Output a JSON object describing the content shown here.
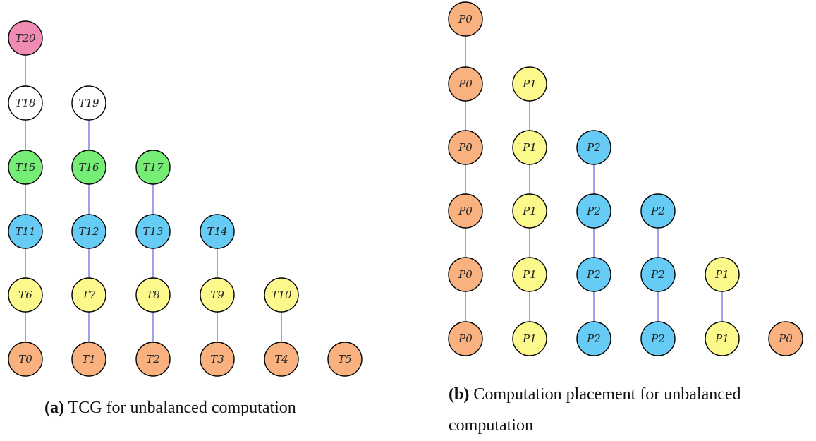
{
  "colors": {
    "pink": "#f08cb4",
    "white": "#ffffff",
    "green": "#76ee76",
    "blue": "#66ccf5",
    "yellow": "#fcf98c",
    "orange": "#f9b27f",
    "edge": "#8888e8",
    "stroke": "#000000"
  },
  "diagram_a": {
    "nodes": [
      {
        "id": "T20",
        "label": "T20",
        "color": "pink"
      },
      {
        "id": "T18",
        "label": "T18",
        "color": "white"
      },
      {
        "id": "T19",
        "label": "T19",
        "color": "white"
      },
      {
        "id": "T15",
        "label": "T15",
        "color": "green"
      },
      {
        "id": "T16",
        "label": "T16",
        "color": "green"
      },
      {
        "id": "T17",
        "label": "T17",
        "color": "green"
      },
      {
        "id": "T11",
        "label": "T11",
        "color": "blue"
      },
      {
        "id": "T12",
        "label": "T12",
        "color": "blue"
      },
      {
        "id": "T13",
        "label": "T13",
        "color": "blue"
      },
      {
        "id": "T14",
        "label": "T14",
        "color": "blue"
      },
      {
        "id": "T6",
        "label": "T6",
        "color": "yellow"
      },
      {
        "id": "T7",
        "label": "T7",
        "color": "yellow"
      },
      {
        "id": "T8",
        "label": "T8",
        "color": "yellow"
      },
      {
        "id": "T9",
        "label": "T9",
        "color": "yellow"
      },
      {
        "id": "T10",
        "label": "T10",
        "color": "yellow"
      },
      {
        "id": "T0",
        "label": "T0",
        "color": "orange"
      },
      {
        "id": "T1",
        "label": "T1",
        "color": "orange"
      },
      {
        "id": "T2",
        "label": "T2",
        "color": "orange"
      },
      {
        "id": "T3",
        "label": "T3",
        "color": "orange"
      },
      {
        "id": "T4",
        "label": "T4",
        "color": "orange"
      },
      {
        "id": "T5",
        "label": "T5",
        "color": "orange"
      }
    ],
    "edges": [
      [
        "T20",
        "T18"
      ],
      [
        "T18",
        "T15"
      ],
      [
        "T15",
        "T11"
      ],
      [
        "T11",
        "T6"
      ],
      [
        "T6",
        "T0"
      ],
      [
        "T19",
        "T16"
      ],
      [
        "T16",
        "T12"
      ],
      [
        "T12",
        "T7"
      ],
      [
        "T7",
        "T1"
      ],
      [
        "T17",
        "T13"
      ],
      [
        "T13",
        "T8"
      ],
      [
        "T8",
        "T2"
      ],
      [
        "T14",
        "T9"
      ],
      [
        "T9",
        "T3"
      ],
      [
        "T10",
        "T4"
      ]
    ]
  },
  "diagram_b": {
    "nodes": [
      {
        "id": "b_0_5",
        "label": "P0",
        "color": "orange"
      },
      {
        "id": "b_0_4",
        "label": "P0",
        "color": "orange"
      },
      {
        "id": "b_1_4",
        "label": "P1",
        "color": "yellow"
      },
      {
        "id": "b_0_3",
        "label": "P0",
        "color": "orange"
      },
      {
        "id": "b_1_3",
        "label": "P1",
        "color": "yellow"
      },
      {
        "id": "b_2_3",
        "label": "P2",
        "color": "blue"
      },
      {
        "id": "b_0_2",
        "label": "P0",
        "color": "orange"
      },
      {
        "id": "b_1_2",
        "label": "P1",
        "color": "yellow"
      },
      {
        "id": "b_2_2",
        "label": "P2",
        "color": "blue"
      },
      {
        "id": "b_3_2",
        "label": "P2",
        "color": "blue"
      },
      {
        "id": "b_0_1",
        "label": "P0",
        "color": "orange"
      },
      {
        "id": "b_1_1",
        "label": "P1",
        "color": "yellow"
      },
      {
        "id": "b_2_1",
        "label": "P2",
        "color": "blue"
      },
      {
        "id": "b_3_1",
        "label": "P2",
        "color": "blue"
      },
      {
        "id": "b_4_1",
        "label": "P1",
        "color": "yellow"
      },
      {
        "id": "b_0_0",
        "label": "P0",
        "color": "orange"
      },
      {
        "id": "b_1_0",
        "label": "P1",
        "color": "yellow"
      },
      {
        "id": "b_2_0",
        "label": "P2",
        "color": "blue"
      },
      {
        "id": "b_3_0",
        "label": "P2",
        "color": "blue"
      },
      {
        "id": "b_4_0",
        "label": "P1",
        "color": "yellow"
      },
      {
        "id": "b_5_0",
        "label": "P0",
        "color": "orange"
      }
    ],
    "edges": [
      [
        "b_0_5",
        "b_0_4"
      ],
      [
        "b_0_4",
        "b_0_3"
      ],
      [
        "b_0_3",
        "b_0_2"
      ],
      [
        "b_0_2",
        "b_0_1"
      ],
      [
        "b_0_1",
        "b_0_0"
      ],
      [
        "b_1_4",
        "b_1_3"
      ],
      [
        "b_1_3",
        "b_1_2"
      ],
      [
        "b_1_2",
        "b_1_1"
      ],
      [
        "b_1_1",
        "b_1_0"
      ],
      [
        "b_2_3",
        "b_2_2"
      ],
      [
        "b_2_2",
        "b_2_1"
      ],
      [
        "b_2_1",
        "b_2_0"
      ],
      [
        "b_3_2",
        "b_3_1"
      ],
      [
        "b_3_1",
        "b_3_0"
      ],
      [
        "b_4_1",
        "b_4_0"
      ]
    ]
  },
  "captions": {
    "a_tag": "(a)",
    "a_text": "TCG for unbalanced computation",
    "b_tag": "(b)",
    "b_text_line1": "Computation placement for unbalanced",
    "b_text_line2": "computation"
  }
}
